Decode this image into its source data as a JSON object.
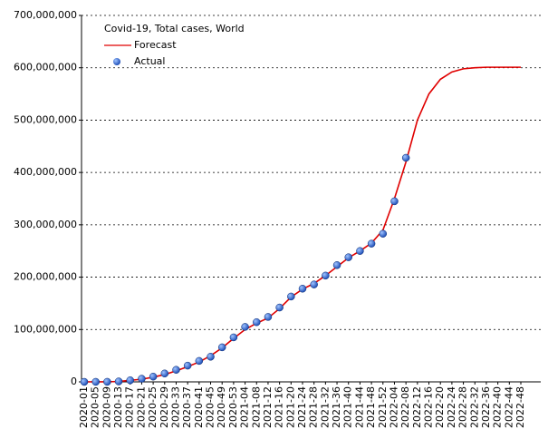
{
  "chart_data": {
    "type": "line",
    "title": "Covid-19, Total cases, World",
    "categories": [
      "2020-01",
      "2020-05",
      "2020-09",
      "2020-13",
      "2020-17",
      "2020-21",
      "2020-25",
      "2020-29",
      "2020-33",
      "2020-37",
      "2020-41",
      "2020-45",
      "2020-49",
      "2020-53",
      "2021-04",
      "2021-08",
      "2021-12",
      "2021-16",
      "2021-20",
      "2021-24",
      "2021-28",
      "2021-32",
      "2021-36",
      "2021-40",
      "2021-44",
      "2021-48",
      "2021-52",
      "2022-04",
      "2022-08",
      "2022-12",
      "2022-16",
      "2022-20",
      "2022-24",
      "2022-28",
      "2022-32",
      "2022-36",
      "2022-40",
      "2022-44",
      "2022-48"
    ],
    "series": [
      {
        "name": "Forecast",
        "color": "#e00000",
        "mode": "line",
        "values": [
          0,
          30000,
          100000,
          800000,
          3000000,
          5000000,
          9000000,
          14000000,
          21000000,
          29000000,
          38000000,
          50000000,
          65000000,
          83000000,
          100000000,
          112000000,
          122000000,
          140000000,
          162000000,
          177000000,
          188000000,
          203000000,
          220000000,
          237000000,
          250000000,
          265000000,
          290000000,
          350000000,
          420000000,
          500000000,
          550000000,
          578000000,
          592000000,
          598000000,
          600000000,
          601000000,
          601000000,
          601000000,
          601000000
        ]
      },
      {
        "name": "Actual",
        "color": "#1f4fb8",
        "mode": "markers",
        "values": [
          0,
          30000,
          100000,
          800000,
          3000000,
          6000000,
          10000000,
          16000000,
          23000000,
          31000000,
          40000000,
          48000000,
          66000000,
          85000000,
          105000000,
          114000000,
          124000000,
          142000000,
          163000000,
          178000000,
          186000000,
          203000000,
          223000000,
          238000000,
          250000000,
          264000000,
          283000000,
          345000000,
          428000000,
          null,
          null,
          null,
          null,
          null,
          null,
          null,
          null,
          null,
          null
        ]
      }
    ],
    "ylim": [
      0,
      700000000
    ],
    "yticks": [
      {
        "value": 0,
        "label": "0"
      },
      {
        "value": 100000000,
        "label": "100,000,000"
      },
      {
        "value": 200000000,
        "label": "200,000,000"
      },
      {
        "value": 300000000,
        "label": "300,000,000"
      },
      {
        "value": 400000000,
        "label": "400,000,000"
      },
      {
        "value": 500000000,
        "label": "500,000,000"
      },
      {
        "value": 600000000,
        "label": "600,000,000"
      },
      {
        "value": 700000000,
        "label": "700,000,000"
      }
    ],
    "grid": true,
    "legend": "top-left"
  }
}
